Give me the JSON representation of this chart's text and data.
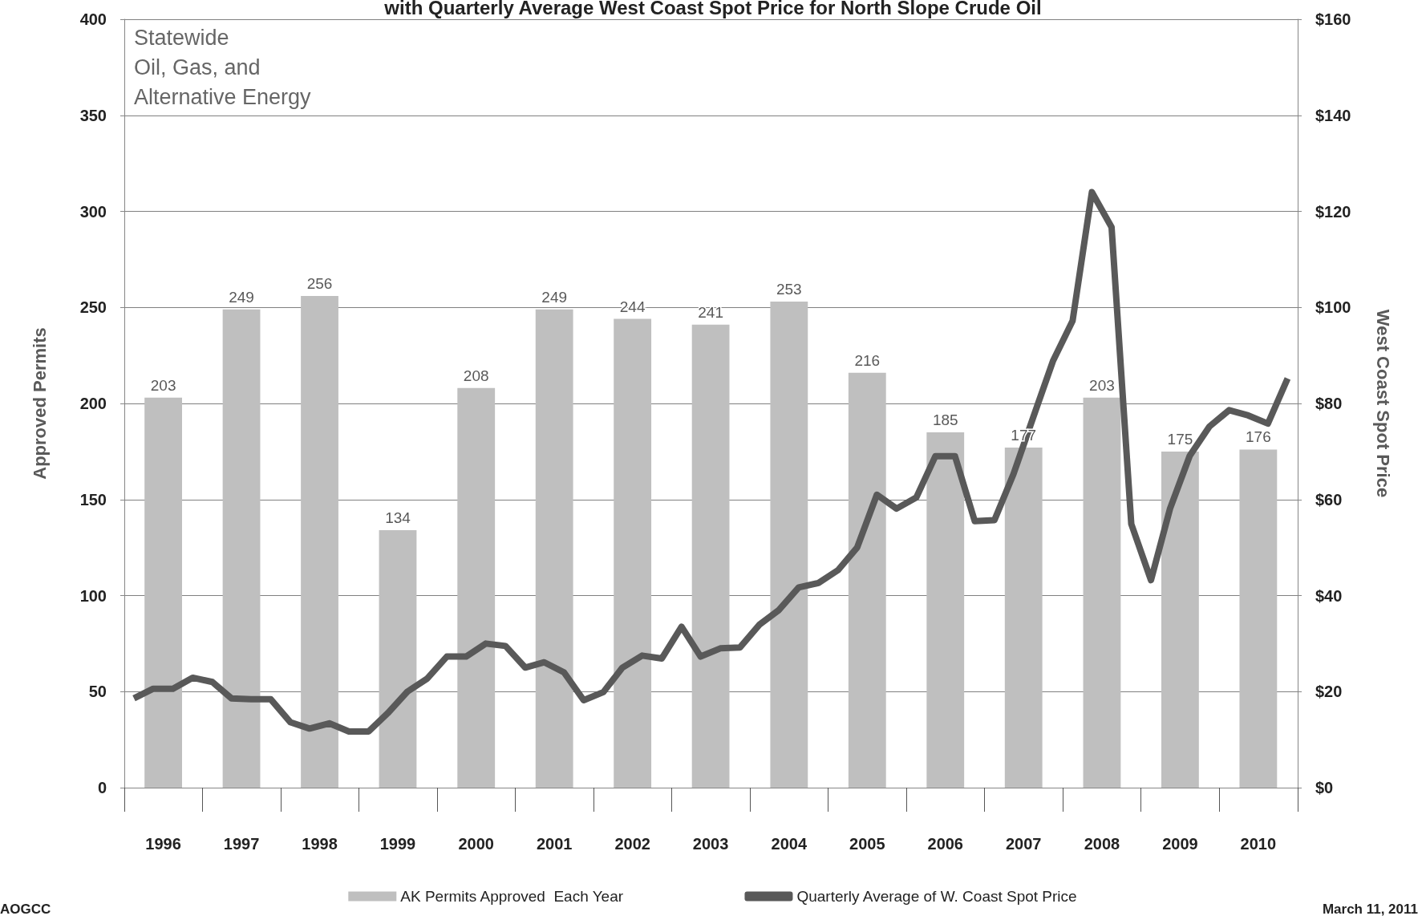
{
  "chart_data": {
    "type": "bar",
    "title": "with Quarterly Average West Coast Spot Price for North Slope Crude Oil",
    "ylabel": "Approved Permits",
    "y2label": "West Coast Spot Price",
    "x": [
      "1996-07-01",
      "1997-07-01",
      "1998-07-01",
      "1999-07-01",
      "2000-07-01",
      "2001-07-01",
      "2002-07-01",
      "2003-07-01",
      "2004-07-01",
      "2005-07-01",
      "2006-07-01",
      "2007-07-01",
      "2008-07-01",
      "2009-07-01",
      "2010-07-01"
    ],
    "xlim": [
      "1996-01-01",
      "2011-01-01"
    ],
    "xticks": [
      {
        "value": "1996-07-01",
        "label": "1996"
      },
      {
        "value": "1997-07-01",
        "label": "1997"
      },
      {
        "value": "1998-07-01",
        "label": "1998"
      },
      {
        "value": "1999-07-01",
        "label": "1999"
      },
      {
        "value": "2000-07-01",
        "label": "2000"
      },
      {
        "value": "2001-07-01",
        "label": "2001"
      },
      {
        "value": "2002-07-01",
        "label": "2002"
      },
      {
        "value": "2003-07-01",
        "label": "2003"
      },
      {
        "value": "2004-07-01",
        "label": "2004"
      },
      {
        "value": "2005-07-01",
        "label": "2005"
      },
      {
        "value": "2006-07-01",
        "label": "2006"
      },
      {
        "value": "2007-07-01",
        "label": "2007"
      },
      {
        "value": "2008-07-01",
        "label": "2008"
      },
      {
        "value": "2009-07-01",
        "label": "2009"
      },
      {
        "value": "2010-07-01",
        "label": "2010"
      }
    ],
    "series": [
      {
        "name": "AK Permits Approved  Each Year",
        "color": "#bfbfbf",
        "values": [
          203,
          249,
          256,
          134,
          208,
          249,
          244,
          241,
          253,
          216,
          185,
          177,
          203,
          175,
          176
        ],
        "value_labels": [
          "203",
          "249",
          "256",
          "134",
          "208",
          "249",
          "244",
          "241",
          "253",
          "216",
          "185",
          "177",
          "203",
          "175",
          "176"
        ]
      },
      {
        "name": "Quarterly Average of W. Coast Spot Price",
        "type": "line",
        "axis": "y2",
        "color": "#595959",
        "marker": "none",
        "x": [
          "1996-02-15",
          "1996-05-15",
          "1996-08-15",
          "1996-11-15",
          "1997-02-15",
          "1997-05-15",
          "1997-08-15",
          "1997-11-15",
          "1998-02-15",
          "1998-05-15",
          "1998-08-15",
          "1998-11-15",
          "1999-02-15",
          "1999-05-15",
          "1999-08-15",
          "1999-11-15",
          "2000-02-15",
          "2000-05-15",
          "2000-08-15",
          "2000-11-15",
          "2001-02-15",
          "2001-05-15",
          "2001-08-15",
          "2001-11-15",
          "2002-02-15",
          "2002-05-15",
          "2002-08-15",
          "2002-11-15",
          "2003-02-15",
          "2003-05-15",
          "2003-08-15",
          "2003-11-15",
          "2004-02-15",
          "2004-05-15",
          "2004-08-15",
          "2004-11-15",
          "2005-02-15",
          "2005-05-15",
          "2005-08-15",
          "2005-11-15",
          "2006-02-15",
          "2006-05-15",
          "2006-08-15",
          "2006-11-15",
          "2007-02-15",
          "2007-05-15",
          "2007-08-15",
          "2007-11-15",
          "2008-02-15",
          "2008-05-15",
          "2008-08-15",
          "2008-11-15",
          "2009-02-15",
          "2009-05-15",
          "2009-08-15",
          "2009-11-15",
          "2010-02-15",
          "2010-05-15",
          "2010-08-15",
          "2010-11-15"
        ],
        "values": [
          18.6,
          20.6,
          20.6,
          22.9,
          22,
          18.6,
          18.4,
          18.4,
          13.6,
          12.3,
          13.4,
          11.7,
          11.7,
          15.5,
          20,
          22.7,
          27.3,
          27.3,
          30,
          29.5,
          25,
          26.1,
          24,
          18.2,
          19.9,
          25,
          27.5,
          26.9,
          33.5,
          27.3,
          29,
          29.2,
          34,
          37,
          41.7,
          42.6,
          45.3,
          50,
          61,
          58.1,
          60.4,
          69,
          69,
          55.5,
          55.7,
          65.3,
          77.1,
          88.8,
          97.2,
          124,
          116.7,
          54.9,
          43.2,
          58.1,
          69.1,
          75.2,
          78.6,
          77.5,
          75.8,
          85.2
        ]
      }
    ],
    "ylim": [
      0,
      400
    ],
    "yticks": [
      0,
      50,
      100,
      150,
      200,
      250,
      300,
      350,
      400
    ],
    "y2lim": [
      0,
      160
    ],
    "y2ticks": [
      {
        "value": 0,
        "label": "$0"
      },
      {
        "value": 20,
        "label": "$20"
      },
      {
        "value": 40,
        "label": "$40"
      },
      {
        "value": 60,
        "label": "$60"
      },
      {
        "value": 80,
        "label": "$80"
      },
      {
        "value": 100,
        "label": "$100"
      },
      {
        "value": 120,
        "label": "$120"
      },
      {
        "value": 140,
        "label": "$140"
      },
      {
        "value": 160,
        "label": "$160"
      }
    ],
    "grid": "y",
    "legend": "bottom",
    "annotations": [
      "Statewide\nOil, Gas, and\nAlternative Energy",
      "AOGCC",
      "March 11, 2011"
    ]
  }
}
